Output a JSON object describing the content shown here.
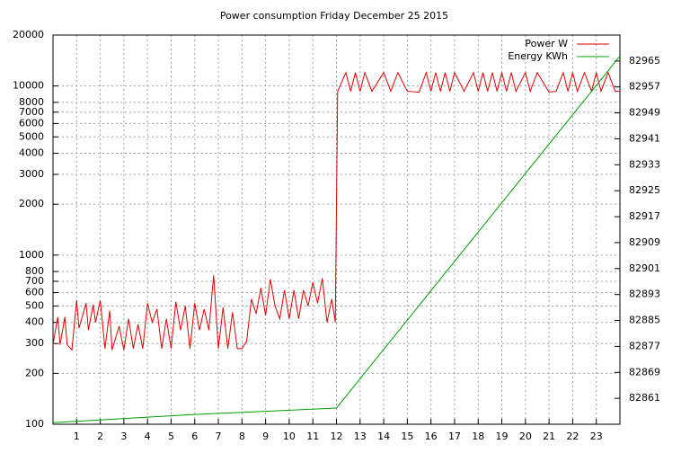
{
  "chart_data": {
    "type": "line",
    "title": "Power consumption Friday December 25 2015",
    "xlim": [
      0,
      24
    ],
    "xticks": [
      1,
      2,
      3,
      4,
      5,
      6,
      7,
      8,
      9,
      10,
      11,
      12,
      13,
      14,
      15,
      16,
      17,
      18,
      19,
      20,
      21,
      22,
      23
    ],
    "ylim": [
      100,
      20000
    ],
    "yscale": "log",
    "yticks": [
      100,
      200,
      300,
      400,
      500,
      600,
      700,
      800,
      1000,
      2000,
      3000,
      4000,
      5000,
      6000,
      7000,
      8000,
      10000,
      20000
    ],
    "y2lim": [
      82853,
      82973
    ],
    "y2ticks": [
      82861,
      82869,
      82877,
      82885,
      82893,
      82901,
      82909,
      82917,
      82925,
      82933,
      82941,
      82949,
      82957,
      82965
    ],
    "grid": true,
    "legend": "top-right",
    "series": [
      {
        "name": "Power W",
        "color": "#e00000",
        "x": [
          0,
          0.2,
          0.3,
          0.5,
          0.6,
          0.8,
          1.0,
          1.1,
          1.4,
          1.5,
          1.7,
          1.8,
          2.0,
          2.2,
          2.4,
          2.5,
          2.8,
          3.0,
          3.2,
          3.4,
          3.6,
          3.8,
          4.0,
          4.2,
          4.4,
          4.6,
          4.8,
          5.0,
          5.2,
          5.4,
          5.6,
          5.8,
          6.0,
          6.2,
          6.4,
          6.6,
          6.8,
          7.0,
          7.2,
          7.4,
          7.6,
          7.8,
          8.0,
          8.2,
          8.4,
          8.6,
          8.8,
          9.0,
          9.2,
          9.4,
          9.6,
          9.8,
          10.0,
          10.2,
          10.4,
          10.6,
          10.8,
          11.0,
          11.2,
          11.4,
          11.6,
          11.8,
          11.95,
          12.05,
          12.4,
          12.6,
          12.8,
          13.0,
          13.2,
          13.5,
          14.0,
          14.3,
          14.6,
          15.0,
          15.5,
          15.8,
          16.0,
          16.2,
          16.4,
          16.6,
          16.8,
          17.0,
          17.4,
          17.8,
          18.0,
          18.2,
          18.4,
          18.6,
          18.8,
          19.0,
          19.2,
          19.4,
          19.6,
          20.0,
          20.2,
          20.5,
          21.0,
          21.3,
          21.6,
          21.8,
          22.0,
          22.2,
          22.5,
          22.8,
          23.0,
          23.2,
          23.5,
          23.8,
          24.0
        ],
        "values": [
          295,
          430,
          295,
          430,
          295,
          275,
          540,
          370,
          520,
          360,
          510,
          400,
          540,
          280,
          470,
          275,
          380,
          275,
          420,
          280,
          390,
          280,
          520,
          400,
          480,
          280,
          420,
          280,
          530,
          360,
          500,
          280,
          520,
          360,
          480,
          360,
          760,
          280,
          490,
          280,
          460,
          280,
          280,
          310,
          550,
          450,
          640,
          440,
          720,
          500,
          420,
          620,
          420,
          620,
          420,
          620,
          500,
          690,
          520,
          730,
          400,
          550,
          400,
          9300,
          12000,
          9300,
          12000,
          9300,
          12000,
          9300,
          12000,
          9300,
          12000,
          9300,
          9200,
          12000,
          9300,
          12000,
          9300,
          12000,
          9300,
          12000,
          9300,
          12000,
          9300,
          12000,
          9300,
          12000,
          9300,
          12000,
          9300,
          12000,
          9300,
          12000,
          9300,
          12000,
          9200,
          9300,
          12000,
          9300,
          12000,
          9300,
          12000,
          9300,
          12000,
          9300,
          12000,
          9300,
          9300
        ]
      },
      {
        "name": "Energy KWh",
        "color": "#00a000",
        "axis": "y2",
        "x": [
          0,
          6,
          12,
          24
        ],
        "values": [
          82853.5,
          82856,
          82858,
          82966.5
        ]
      }
    ]
  }
}
